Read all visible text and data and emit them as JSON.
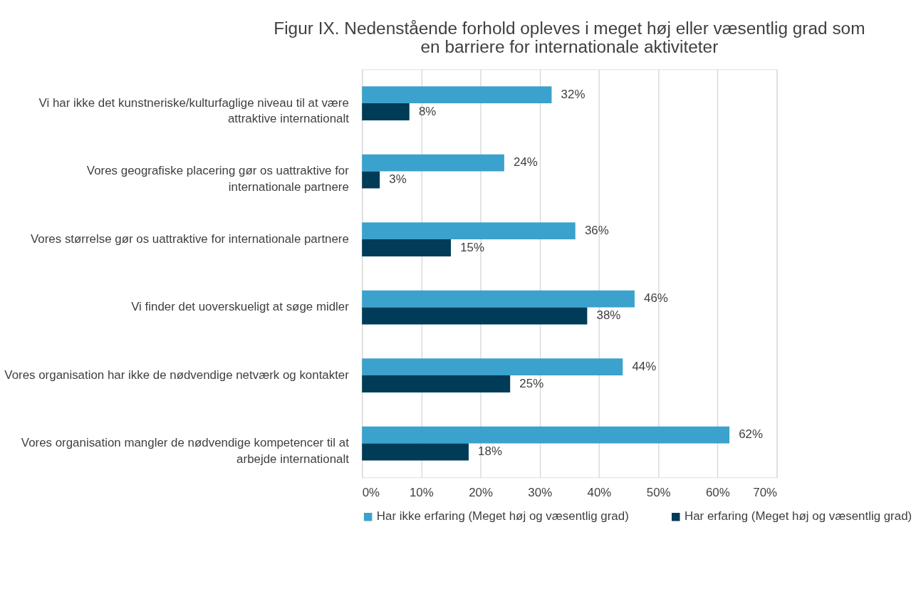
{
  "chart_data": {
    "type": "bar",
    "orientation": "horizontal",
    "title": "Figur IX. Nedenstående forhold opleves i meget høj eller væsentlig grad som en barriere for internationale aktiviteter",
    "categories": [
      "Vi har ikke det kunstneriske/kulturfaglige niveau til at være attraktive internationalt",
      "Vores geografiske placering gør os uattraktive for internationale partnere",
      "Vores størrelse gør os uattraktive for internationale partnere",
      "Vi finder det uoverskueligt at søge midler",
      "Vores organisation har ikke de nødvendige netværk og kontakter",
      "Vores organisation mangler de nødvendige kompetencer til at arbejde internationalt"
    ],
    "series": [
      {
        "name": "Har ikke erfaring (Meget høj og væsentlig grad)",
        "color": "#3aa2cc",
        "values": [
          32,
          24,
          36,
          46,
          44,
          62
        ],
        "value_labels": [
          "32%",
          "24%",
          "36%",
          "46%",
          "44%",
          "62%"
        ]
      },
      {
        "name": "Har erfaring (Meget høj og væsentlig grad)",
        "color": "#003b58",
        "values": [
          8,
          3,
          15,
          38,
          25,
          18
        ],
        "value_labels": [
          "8%",
          "3%",
          "15%",
          "38%",
          "25%",
          "18%"
        ]
      }
    ],
    "xlim": [
      0,
      70
    ],
    "xticks": [
      {
        "value": 0,
        "label": "0%"
      },
      {
        "value": 10,
        "label": "10%"
      },
      {
        "value": 20,
        "label": "20%"
      },
      {
        "value": 30,
        "label": "30%"
      },
      {
        "value": 40,
        "label": "40%"
      },
      {
        "value": 50,
        "label": "50%"
      },
      {
        "value": 60,
        "label": "60%"
      },
      {
        "value": 70,
        "label": "70%"
      }
    ],
    "grid": "x",
    "legend": "bottom"
  }
}
